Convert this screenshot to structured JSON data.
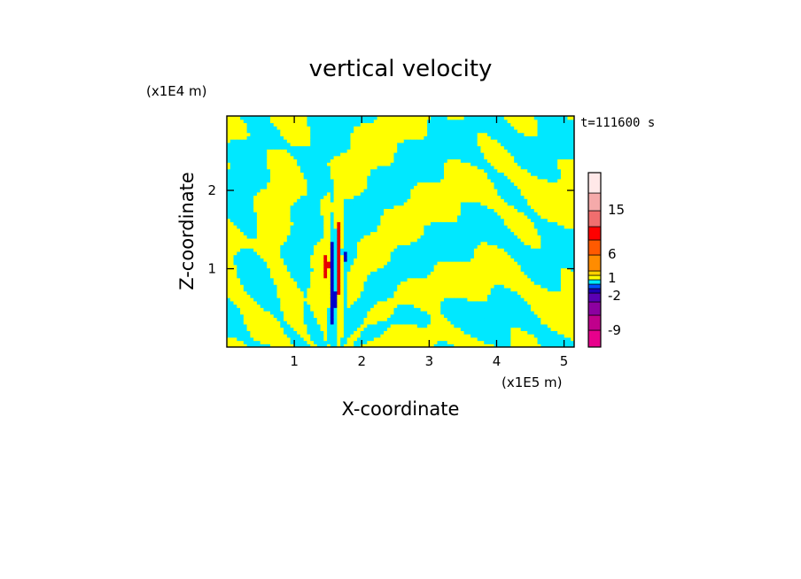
{
  "chart_data": {
    "type": "heatmap",
    "title": "vertical velocity",
    "xlabel": "X-coordinate",
    "ylabel": "Z-coordinate",
    "x_unit": "(x1E5 m)",
    "y_unit": "(x1E4 m)",
    "time_label": "t=111600 s",
    "xlim": [
      0,
      5.15
    ],
    "ylim": [
      0,
      2.95
    ],
    "x_ticks": [
      "1",
      "2",
      "3",
      "4",
      "5"
    ],
    "y_ticks": [
      "1",
      "2"
    ],
    "colorbar": {
      "tick_labels": [
        "15",
        "6",
        "1",
        "-2",
        "-9"
      ],
      "colors": [
        "#e8008c",
        "#c0008c",
        "#8c00a0",
        "#5a00b4",
        "#1e00b4",
        "#0050ff",
        "#00e8ff",
        "#ffff00",
        "#ffd000",
        "#ff8c00",
        "#ff5a00",
        "#ff0000",
        "#f06e6e",
        "#f5aaaa",
        "#ffe8e8"
      ]
    },
    "field_description_colors": {
      "positive_weak": "#ffff00",
      "negative_weak": "#00e8ff",
      "positive_strong": "#e60000",
      "negative_strong": "#0000c8"
    },
    "grid": false
  }
}
